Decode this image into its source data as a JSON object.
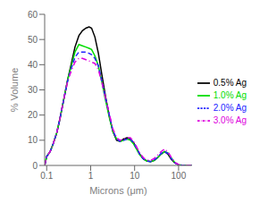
{
  "chart_data": {
    "type": "line",
    "xlabel": "Microns (μm)",
    "ylabel": "% Volume",
    "log": "x",
    "xlim": [
      0.09,
      200
    ],
    "xticks": [
      0.1,
      1,
      10,
      100
    ],
    "ylim": [
      0,
      60
    ],
    "yticks": [
      0,
      10,
      20,
      30,
      40,
      50,
      60
    ],
    "grid": false,
    "legend": "right",
    "x": [
      0.09,
      0.1,
      0.12,
      0.14,
      0.17,
      0.2,
      0.25,
      0.3,
      0.37,
      0.44,
      0.54,
      0.65,
      0.78,
      0.92,
      1.05,
      1.25,
      1.5,
      1.8,
      2.2,
      2.7,
      3.2,
      3.9,
      4.7,
      5.6,
      6.7,
      8.0,
      9.5,
      11.0,
      13.0,
      16.0,
      19.0,
      23.0,
      28.0,
      33.0,
      40.0,
      48.0,
      57.0,
      68.0,
      82.0,
      100.0,
      120.0,
      150.0,
      180.0,
      200.0
    ],
    "series": [
      {
        "name": "0.5% Ag",
        "color": "black",
        "line_style": "solid",
        "values": [
          0.0,
          3.5,
          5.5,
          8.5,
          13.0,
          18.5,
          27.0,
          34.0,
          41.0,
          47.0,
          51.5,
          53.5,
          54.5,
          55.0,
          54.5,
          51.0,
          44.5,
          36.0,
          27.0,
          19.0,
          13.5,
          10.0,
          9.5,
          10.5,
          11.0,
          10.5,
          9.0,
          7.0,
          4.5,
          2.5,
          1.8,
          1.5,
          2.0,
          3.0,
          4.5,
          5.5,
          4.5,
          2.5,
          1.0,
          0.2,
          0.05,
          0.0,
          0.0,
          0.0
        ]
      },
      {
        "name": "1.0% Ag",
        "color": "#00dd00",
        "line_style": "solid",
        "values": [
          0.0,
          3.5,
          5.5,
          8.5,
          13.0,
          18.5,
          27.0,
          34.0,
          40.0,
          45.0,
          48.0,
          47.5,
          47.0,
          46.5,
          46.0,
          43.5,
          39.5,
          33.0,
          25.5,
          18.5,
          13.5,
          10.5,
          9.5,
          10.0,
          10.5,
          10.0,
          8.5,
          6.5,
          4.2,
          2.5,
          1.8,
          1.5,
          2.0,
          3.0,
          4.5,
          5.5,
          5.0,
          3.0,
          1.2,
          0.3,
          0.08,
          0.0,
          0.0,
          0.0
        ]
      },
      {
        "name": "2.0% Ag",
        "color": "#2222ff",
        "line_style": "dashed",
        "values": [
          0.0,
          3.5,
          5.5,
          8.5,
          13.0,
          18.5,
          27.0,
          33.5,
          39.0,
          43.0,
          45.0,
          45.0,
          45.0,
          44.5,
          44.0,
          42.5,
          39.5,
          33.5,
          26.5,
          19.5,
          14.0,
          10.5,
          9.5,
          10.0,
          10.5,
          10.5,
          9.0,
          7.0,
          4.5,
          2.5,
          1.8,
          1.5,
          2.2,
          3.2,
          4.8,
          5.5,
          4.8,
          2.8,
          1.0,
          0.3,
          0.08,
          0.0,
          0.0,
          0.0
        ]
      },
      {
        "name": "3.0% Ag",
        "color": "#dd00dd",
        "line_style": "dashdot",
        "values": [
          0.0,
          3.5,
          5.5,
          8.5,
          13.0,
          18.5,
          27.0,
          33.5,
          38.0,
          41.0,
          42.5,
          42.5,
          42.0,
          41.5,
          41.0,
          40.5,
          38.0,
          33.0,
          26.5,
          20.0,
          14.5,
          11.0,
          10.0,
          10.5,
          11.0,
          11.0,
          9.5,
          7.5,
          5.0,
          3.0,
          2.2,
          2.0,
          2.8,
          4.0,
          5.5,
          6.5,
          5.5,
          3.2,
          1.2,
          0.4,
          0.1,
          0.0,
          0.0,
          0.0
        ]
      }
    ]
  }
}
